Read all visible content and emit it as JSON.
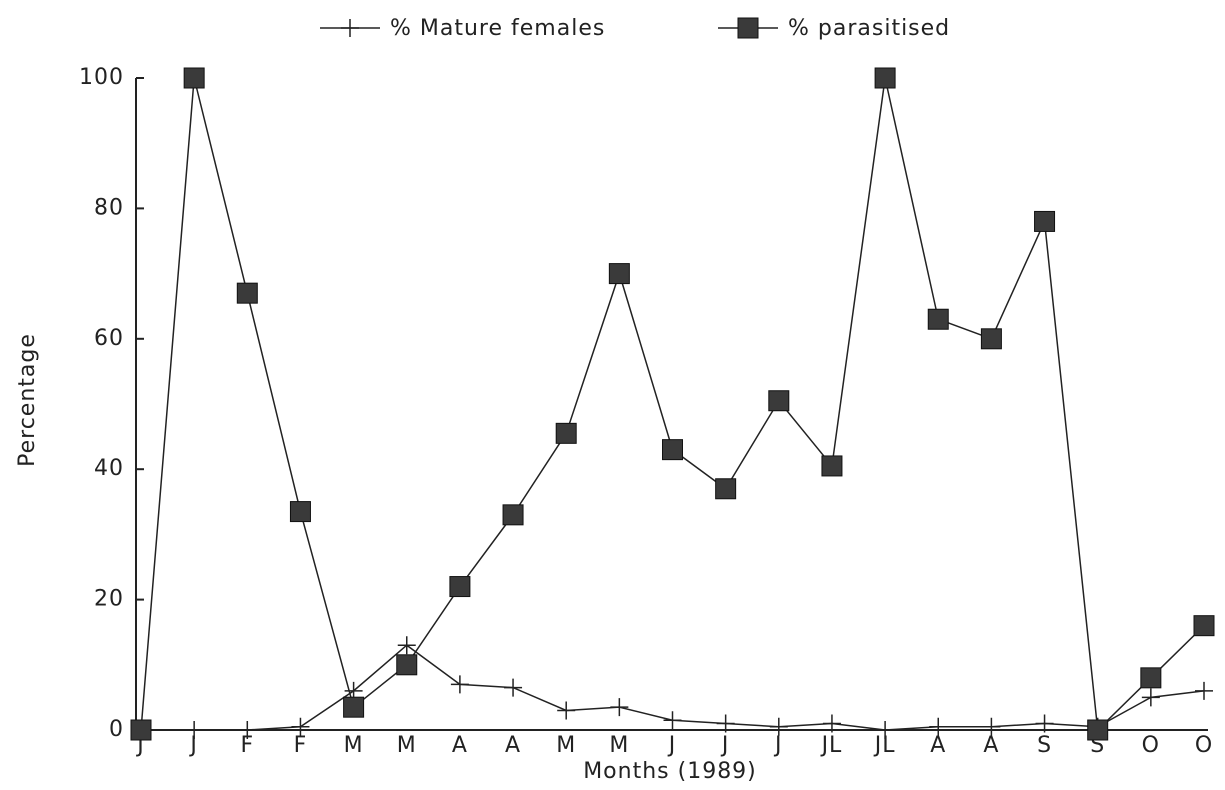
{
  "chart_data": {
    "type": "line",
    "x_label": "Months (1989)",
    "y_label": "Percentage",
    "categories": [
      "J",
      "J",
      "F",
      "F",
      "M",
      "M",
      "A",
      "A",
      "M",
      "M",
      "J",
      "J",
      "J",
      "JL",
      "JL",
      "A",
      "A",
      "S",
      "S",
      "O",
      "O"
    ],
    "series": [
      {
        "name": "% Mature females",
        "color": "#222222",
        "marker": "cross",
        "values": [
          0,
          0,
          0,
          0.5,
          6,
          13,
          7,
          6.5,
          3,
          3.5,
          1.5,
          1,
          0.5,
          1,
          0,
          0.5,
          0.5,
          1,
          0.5,
          5,
          6
        ]
      },
      {
        "name": "% parasitised",
        "color": "#222222",
        "marker": "square",
        "values": [
          0,
          100,
          67,
          33.5,
          3.5,
          10,
          22,
          33,
          45.5,
          70,
          43,
          37,
          50.5,
          40.5,
          100,
          63,
          60,
          78,
          0,
          8,
          16
        ]
      }
    ],
    "ylim": [
      0,
      100
    ],
    "yticks": [
      0,
      20,
      40,
      60,
      80,
      100
    ],
    "legend": "top"
  }
}
